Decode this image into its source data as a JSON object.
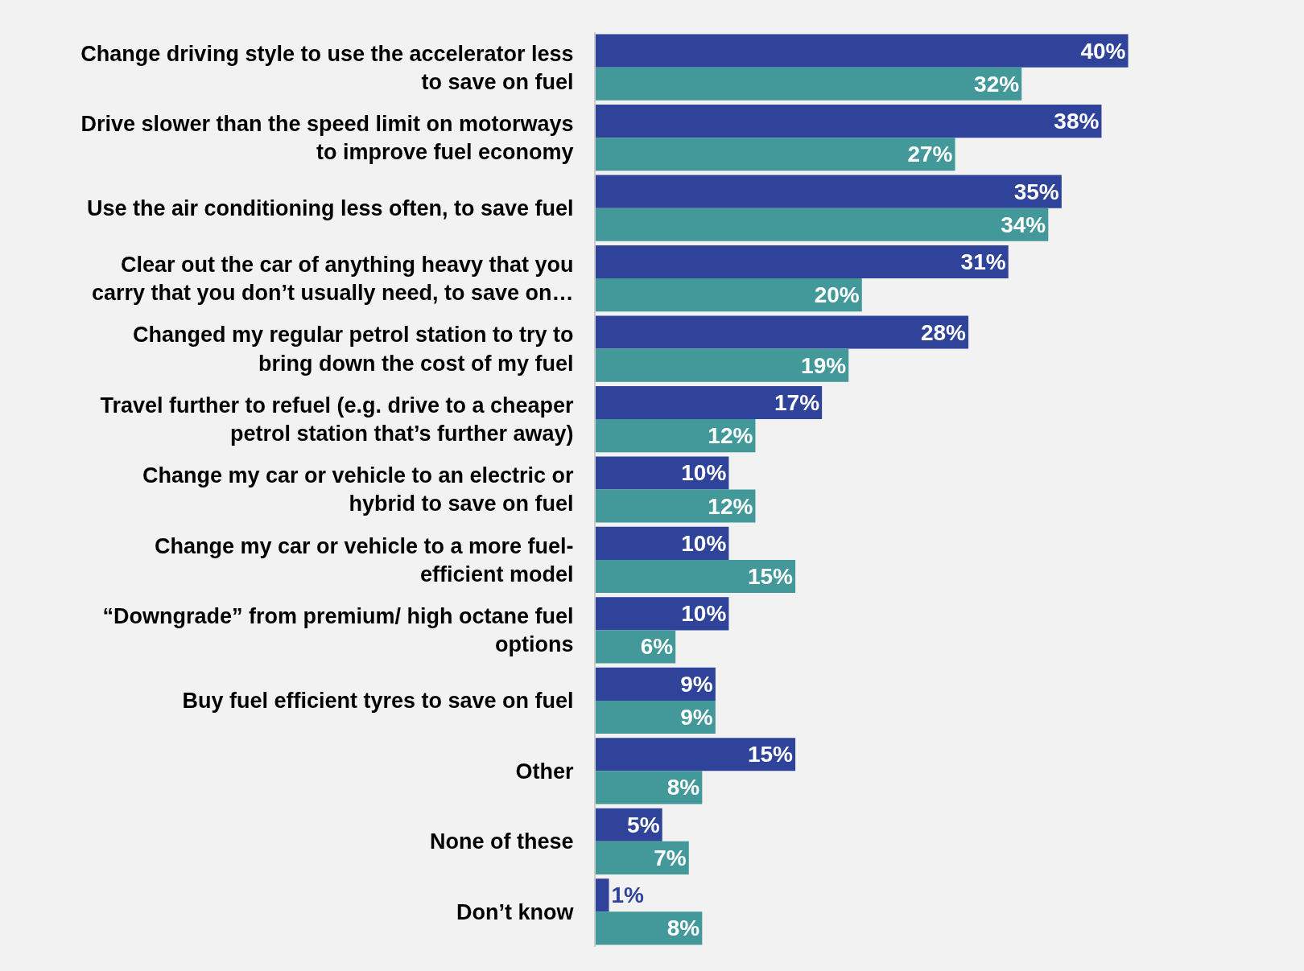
{
  "chart_data": {
    "type": "bar",
    "orientation": "horizontal",
    "categories": [
      "Change driving style to use the accelerator less\nto save on fuel",
      "Drive slower than the speed limit on motorways\nto improve fuel economy",
      "Use the air conditioning less often, to save fuel",
      "Clear out the car of anything heavy that you\ncarry that you don’t usually need, to save on…",
      "Changed my regular petrol station to try to\nbring down the cost of my fuel",
      "Travel further to refuel (e.g. drive to a cheaper\npetrol station that’s further away)",
      "Change my car or vehicle to an electric or\nhybrid to save on fuel",
      "Change my car or vehicle to a more fuel-\nefficient model",
      "“Downgrade” from premium/ high octane fuel\noptions",
      "Buy fuel efficient tyres to save on fuel",
      "Other",
      "None of these",
      "Don’t know"
    ],
    "series": [
      {
        "color": "#2e4399",
        "values": [
          40,
          38,
          35,
          31,
          28,
          17,
          10,
          10,
          10,
          9,
          15,
          5,
          1
        ],
        "value_labels": [
          "40%",
          "38%",
          "35%",
          "31%",
          "28%",
          "17%",
          "10%",
          "10%",
          "10%",
          "9%",
          "15%",
          "5%",
          "1%"
        ]
      },
      {
        "color": "#43999a",
        "values": [
          32,
          27,
          34,
          20,
          19,
          12,
          12,
          15,
          6,
          9,
          8,
          7,
          8
        ],
        "value_labels": [
          "32%",
          "27%",
          "34%",
          "20%",
          "19%",
          "12%",
          "12%",
          "15%",
          "6%",
          "9%",
          "8%",
          "7%",
          "8%"
        ]
      }
    ]
  }
}
